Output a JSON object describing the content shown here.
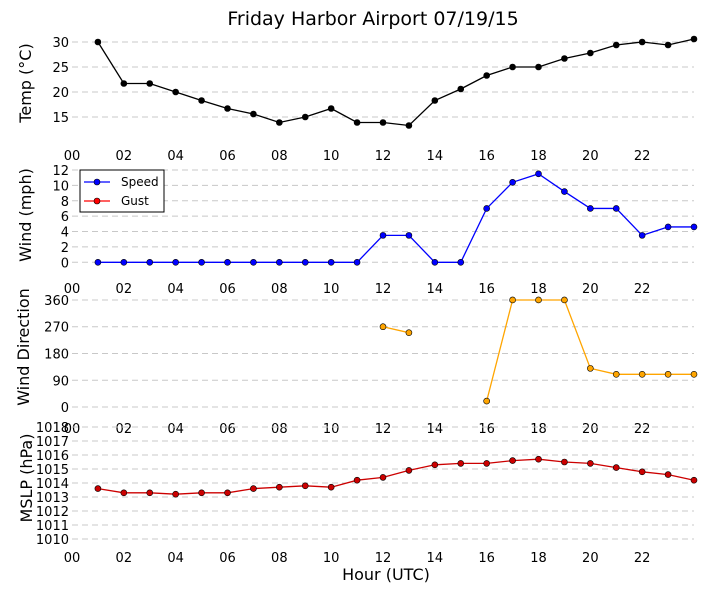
{
  "title": "Friday Harbor Airport 07/19/15",
  "xlabel": "Hour (UTC)",
  "chart_data": [
    {
      "type": "line",
      "ylabel": "Temp ($^\\circ$C)",
      "ylabel_display": "Temp (°C)",
      "xlim": [
        0,
        24
      ],
      "ylim": [
        11,
        32
      ],
      "x_tick_labels": [
        "00",
        "02",
        "04",
        "06",
        "08",
        "10",
        "12",
        "14",
        "16",
        "18",
        "20",
        "22"
      ],
      "y_ticks": [
        15,
        20,
        25,
        30
      ],
      "grid": "horizontal dashed",
      "series": [
        {
          "color": "#000000",
          "x": [
            1,
            2,
            3,
            4,
            5,
            6,
            7,
            8,
            9,
            10,
            11,
            12,
            13,
            14,
            15,
            16,
            17,
            18,
            19,
            20,
            21,
            22,
            23,
            24
          ],
          "values": [
            30.0,
            21.7,
            21.7,
            20.0,
            18.3,
            16.7,
            15.6,
            13.9,
            15.0,
            16.7,
            13.9,
            13.9,
            13.3,
            18.3,
            20.6,
            23.3,
            25.0,
            25.0,
            26.7,
            27.8,
            29.4,
            30.0,
            29.4,
            30.6
          ]
        }
      ]
    },
    {
      "type": "line",
      "ylabel": "Wind (mph)",
      "xlim": [
        0,
        24
      ],
      "ylim": [
        -1,
        12
      ],
      "x_tick_labels": [
        "00",
        "02",
        "04",
        "06",
        "08",
        "10",
        "12",
        "14",
        "16",
        "18",
        "20",
        "22"
      ],
      "y_ticks": [
        0,
        2,
        4,
        6,
        8,
        10,
        12
      ],
      "grid": "horizontal dashed",
      "legend": "top-left",
      "series": [
        {
          "name": "Speed",
          "color": "#0000ff",
          "x": [
            1,
            2,
            3,
            4,
            5,
            6,
            7,
            8,
            9,
            10,
            11,
            12,
            13,
            14,
            15,
            16,
            17,
            18,
            19,
            20,
            21,
            22,
            23,
            24
          ],
          "values": [
            0,
            0,
            0,
            0,
            0,
            0,
            0,
            0,
            0,
            0,
            0,
            3.5,
            3.5,
            0,
            0,
            7,
            10.4,
            11.5,
            9.2,
            7,
            7,
            3.5,
            4.6,
            4.6
          ]
        },
        {
          "name": "Gust",
          "color": "#ff0000",
          "x": [],
          "values": []
        }
      ]
    },
    {
      "type": "line",
      "ylabel": "Wind Direction",
      "xlim": [
        0,
        24
      ],
      "ylim": [
        -10,
        370
      ],
      "x_tick_labels": [
        "00",
        "02",
        "04",
        "06",
        "08",
        "10",
        "12",
        "14",
        "16",
        "18",
        "20",
        "22"
      ],
      "y_ticks": [
        0,
        90,
        180,
        270,
        360
      ],
      "grid": "horizontal dashed",
      "series": [
        {
          "color": "#ffa500",
          "segments": [
            {
              "x": [
                12,
                13
              ],
              "values": [
                270,
                250
              ]
            },
            {
              "x": [
                16,
                17,
                18,
                19,
                20,
                21,
                22,
                23,
                24
              ],
              "values": [
                20,
                360,
                360,
                360,
                130,
                110,
                110,
                110,
                110
              ]
            }
          ]
        }
      ]
    },
    {
      "type": "line",
      "ylabel": "MSLP (hPa)",
      "xlim": [
        0,
        24
      ],
      "ylim": [
        1010,
        1018
      ],
      "x_tick_labels": [
        "00",
        "02",
        "04",
        "06",
        "08",
        "10",
        "12",
        "14",
        "16",
        "18",
        "20",
        "22"
      ],
      "y_ticks": [
        1010,
        1011,
        1012,
        1013,
        1014,
        1015,
        1016,
        1017,
        1018
      ],
      "grid": "horizontal dashed",
      "series": [
        {
          "color": "#cc0000",
          "x": [
            1,
            2,
            3,
            4,
            5,
            6,
            7,
            8,
            9,
            10,
            11,
            12,
            13,
            14,
            15,
            16,
            17,
            18,
            19,
            20,
            21,
            22,
            23,
            24
          ],
          "values": [
            1013.6,
            1013.3,
            1013.3,
            1013.2,
            1013.3,
            1013.3,
            1013.6,
            1013.7,
            1013.8,
            1013.7,
            1014.2,
            1014.4,
            1014.9,
            1015.3,
            1015.4,
            1015.4,
            1015.6,
            1015.7,
            1015.5,
            1015.4,
            1015.1,
            1014.8,
            1014.6,
            1014.2
          ]
        }
      ]
    }
  ]
}
